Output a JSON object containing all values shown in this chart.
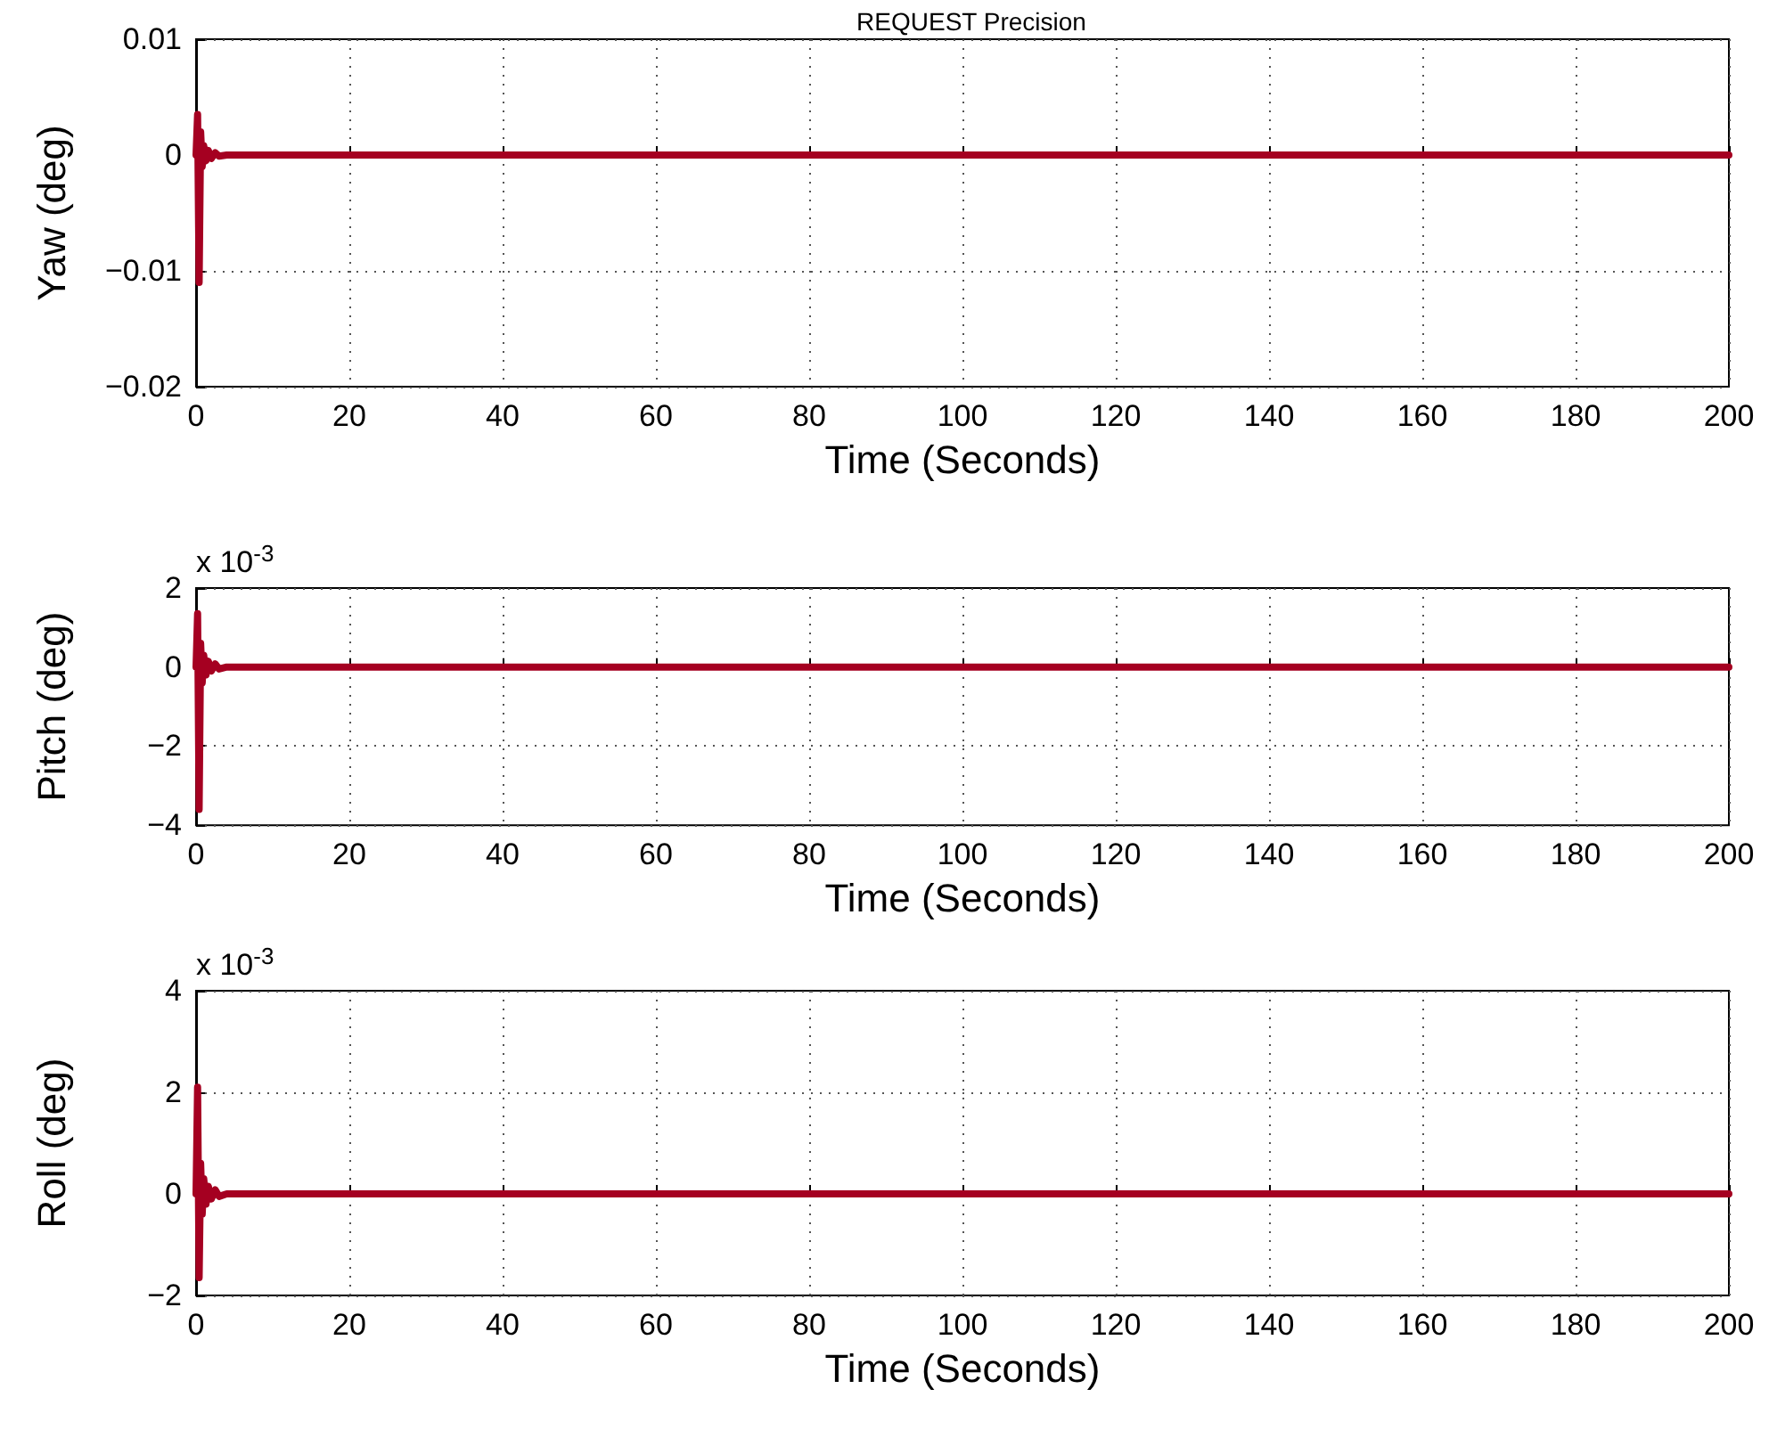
{
  "chart_data": [
    {
      "type": "line",
      "title": "REQUEST Precision",
      "xlabel": "Time (Seconds)",
      "ylabel": "Yaw (deg)",
      "series": [
        {
          "color": "#a50021",
          "x": [
            0,
            0.2,
            0.4,
            0.6,
            0.8,
            1.0,
            1.3,
            1.6,
            2,
            2.5,
            3,
            4,
            200
          ],
          "values": [
            0,
            0.0035,
            -0.011,
            0.002,
            -0.001,
            0.0008,
            -0.0005,
            0.0004,
            -0.0003,
            0.0002,
            -0.0001,
            0,
            0
          ]
        }
      ],
      "xlim": [
        0,
        200
      ],
      "xticks": [
        0,
        20,
        40,
        60,
        80,
        100,
        120,
        140,
        160,
        180,
        200
      ],
      "ylim": [
        -0.02,
        0.01
      ],
      "yticks": [
        -0.02,
        -0.01,
        0,
        0.01
      ],
      "grid": true,
      "line_style": "solid",
      "marker": "none"
    },
    {
      "type": "line",
      "xlabel": "Time (Seconds)",
      "ylabel": "Pitch (deg)",
      "annotations": [
        "x 10$^{-3}$"
      ],
      "series": [
        {
          "color": "#a50021",
          "x": [
            0,
            0.2,
            0.4,
            0.6,
            0.8,
            1.0,
            1.3,
            1.6,
            2,
            2.5,
            3,
            4,
            200
          ],
          "values": [
            0,
            1.35,
            -3.6,
            0.6,
            -0.4,
            0.3,
            -0.2,
            0.15,
            -0.1,
            0.08,
            -0.05,
            0,
            0
          ]
        }
      ],
      "xlim": [
        0,
        200
      ],
      "xticks": [
        0,
        20,
        40,
        60,
        80,
        100,
        120,
        140,
        160,
        180,
        200
      ],
      "ylim": [
        -4,
        2
      ],
      "yticks": [
        -4,
        -2,
        0,
        2
      ],
      "grid": true,
      "line_style": "solid",
      "marker": "none"
    },
    {
      "type": "line",
      "xlabel": "Time (Seconds)",
      "ylabel": "Roll (deg)",
      "annotations": [
        "x 10$^{-3}$"
      ],
      "series": [
        {
          "color": "#a50021",
          "x": [
            0,
            0.2,
            0.4,
            0.6,
            0.8,
            1.0,
            1.3,
            1.6,
            2,
            2.5,
            3,
            4,
            200
          ],
          "values": [
            0,
            2.1,
            -1.65,
            0.6,
            -0.4,
            0.3,
            -0.2,
            0.15,
            -0.1,
            0.08,
            -0.05,
            0,
            0
          ]
        }
      ],
      "xlim": [
        0,
        200
      ],
      "xticks": [
        0,
        20,
        40,
        60,
        80,
        100,
        120,
        140,
        160,
        180,
        200
      ],
      "ylim": [
        -2,
        4
      ],
      "yticks": [
        -2,
        0,
        2,
        4
      ],
      "grid": true,
      "line_style": "solid",
      "marker": "none"
    }
  ]
}
